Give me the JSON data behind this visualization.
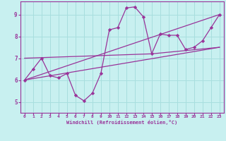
{
  "background_color": "#c8f0f0",
  "grid_color": "#a8dede",
  "line_color": "#993399",
  "marker_color": "#993399",
  "xlabel": "Windchill (Refroidissement éolien,°C)",
  "xlim": [
    -0.5,
    23.5
  ],
  "ylim": [
    4.5,
    9.6
  ],
  "yticks": [
    5,
    6,
    7,
    8,
    9
  ],
  "xticks": [
    0,
    1,
    2,
    3,
    4,
    5,
    6,
    7,
    8,
    9,
    10,
    11,
    12,
    13,
    14,
    15,
    16,
    17,
    18,
    19,
    20,
    21,
    22,
    23
  ],
  "main_series": {
    "x": [
      0,
      1,
      2,
      3,
      4,
      5,
      6,
      7,
      8,
      9,
      10,
      11,
      12,
      13,
      14,
      15,
      16,
      17,
      18,
      19,
      20,
      21,
      22,
      23
    ],
    "y": [
      6.0,
      6.5,
      7.0,
      6.2,
      6.1,
      6.3,
      5.3,
      5.05,
      5.4,
      6.3,
      8.3,
      8.4,
      9.3,
      9.35,
      8.9,
      7.2,
      8.1,
      8.05,
      8.05,
      7.4,
      7.5,
      7.8,
      8.4,
      9.0
    ]
  },
  "reg_lines": [
    {
      "x": [
        0,
        23
      ],
      "y": [
        6.0,
        9.0
      ]
    },
    {
      "x": [
        0,
        23
      ],
      "y": [
        6.0,
        7.5
      ]
    },
    {
      "x": [
        0,
        15,
        23
      ],
      "y": [
        7.0,
        7.2,
        7.5
      ]
    }
  ]
}
